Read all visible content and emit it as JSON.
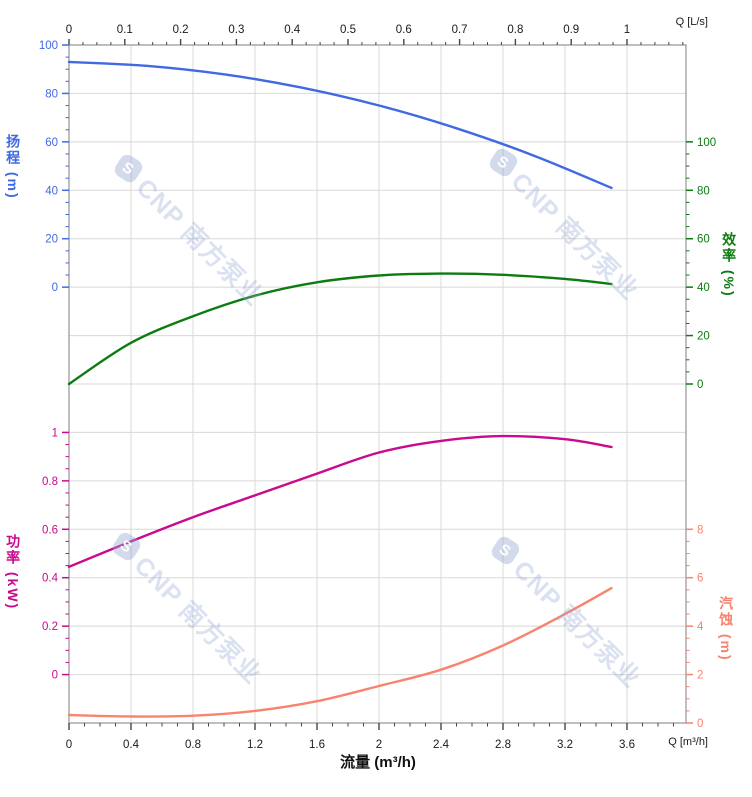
{
  "watermark": {
    "brand": "CNP",
    "text": "CNP 南方泵业"
  },
  "chart_data": {
    "type": "line",
    "title": "",
    "grid": true,
    "legend": "none",
    "frame_color": "#949494",
    "grid_color": "#d8d8d8",
    "axis_text_color": "#1a1a1a",
    "x_axis_bottom": {
      "title": "流量 (m³/h)",
      "unit_label": "Q [m³/h]",
      "min": 0,
      "max": 3.6,
      "major_step": 0.4,
      "minor_step": 0.1,
      "tick_labels": [
        "0",
        "0.4",
        "0.8",
        "1.2",
        "1.6",
        "2",
        "2.4",
        "2.8",
        "3.2",
        "3.6"
      ]
    },
    "x_axis_top": {
      "unit_label": "Q [L/s]",
      "min": 0,
      "max": 1,
      "major_step": 0.1,
      "minor_step": 0.025,
      "to_bottom_factor": 3.6,
      "tick_labels": [
        "0",
        "0.1",
        "0.2",
        "0.3",
        "0.4",
        "0.5",
        "0.6",
        "0.7",
        "0.8",
        "0.9",
        "1"
      ]
    },
    "y_axes": [
      {
        "id": "head",
        "title": "扬程 (m)",
        "side": "left",
        "color": "#4169e1",
        "min": 0,
        "max": 100,
        "major_step": 20,
        "minor_step": 5,
        "tick_labels": [
          "100",
          "80",
          "60",
          "40",
          "20",
          "0"
        ]
      },
      {
        "id": "eff",
        "title": "效率 (%)",
        "side": "right",
        "color": "#0d7c10",
        "min": 0,
        "max": 100,
        "major_step": 20,
        "minor_step": 5,
        "tick_labels": [
          "100",
          "80",
          "60",
          "40",
          "20",
          "0"
        ]
      },
      {
        "id": "power",
        "title": "功率 (kW)",
        "side": "left",
        "color": "#c9098e",
        "min": 0,
        "max": 1,
        "major_step": 0.2,
        "minor_step": 0.05,
        "tick_labels": [
          "1",
          "0.8",
          "0.6",
          "0.4",
          "0.2",
          "0"
        ]
      },
      {
        "id": "npsh",
        "title": "汽蚀 (m)",
        "side": "right",
        "color": "#f8836e",
        "min": 0,
        "max": 8,
        "major_step": 2,
        "minor_step": 0.5,
        "tick_labels": [
          "8",
          "6",
          "4",
          "2",
          "0"
        ]
      }
    ],
    "series": [
      {
        "name": "head-curve",
        "axis": "head",
        "color": "#4169e1",
        "points": [
          [
            0,
            93
          ],
          [
            0.5,
            91.4
          ],
          [
            1,
            87.9
          ],
          [
            1.5,
            82.4
          ],
          [
            2,
            75
          ],
          [
            2.5,
            65.6
          ],
          [
            3,
            54.3
          ],
          [
            3.5,
            41
          ]
        ]
      },
      {
        "name": "efficiency-curve",
        "axis": "eff",
        "color": "#0d7c10",
        "points": [
          [
            0,
            0
          ],
          [
            0.4,
            17
          ],
          [
            0.8,
            28
          ],
          [
            1.2,
            36.5
          ],
          [
            1.6,
            42
          ],
          [
            2,
            44.8
          ],
          [
            2.4,
            45.6
          ],
          [
            2.8,
            45.1
          ],
          [
            3.2,
            43.4
          ],
          [
            3.5,
            41.3
          ]
        ]
      },
      {
        "name": "power-curve",
        "axis": "power",
        "color": "#c9098e",
        "points": [
          [
            0,
            0.445
          ],
          [
            0.4,
            0.55
          ],
          [
            0.8,
            0.65
          ],
          [
            1.2,
            0.74
          ],
          [
            1.6,
            0.83
          ],
          [
            2,
            0.917
          ],
          [
            2.4,
            0.965
          ],
          [
            2.8,
            0.985
          ],
          [
            3.2,
            0.972
          ],
          [
            3.5,
            0.94
          ]
        ]
      },
      {
        "name": "npsh-curve",
        "axis": "npsh",
        "color": "#f8836e",
        "points": [
          [
            0,
            0.33
          ],
          [
            0.4,
            0.27
          ],
          [
            0.8,
            0.3
          ],
          [
            1.2,
            0.5
          ],
          [
            1.6,
            0.9
          ],
          [
            2,
            1.53
          ],
          [
            2.4,
            2.2
          ],
          [
            2.8,
            3.2
          ],
          [
            3.2,
            4.5
          ],
          [
            3.5,
            5.57
          ]
        ]
      }
    ]
  }
}
